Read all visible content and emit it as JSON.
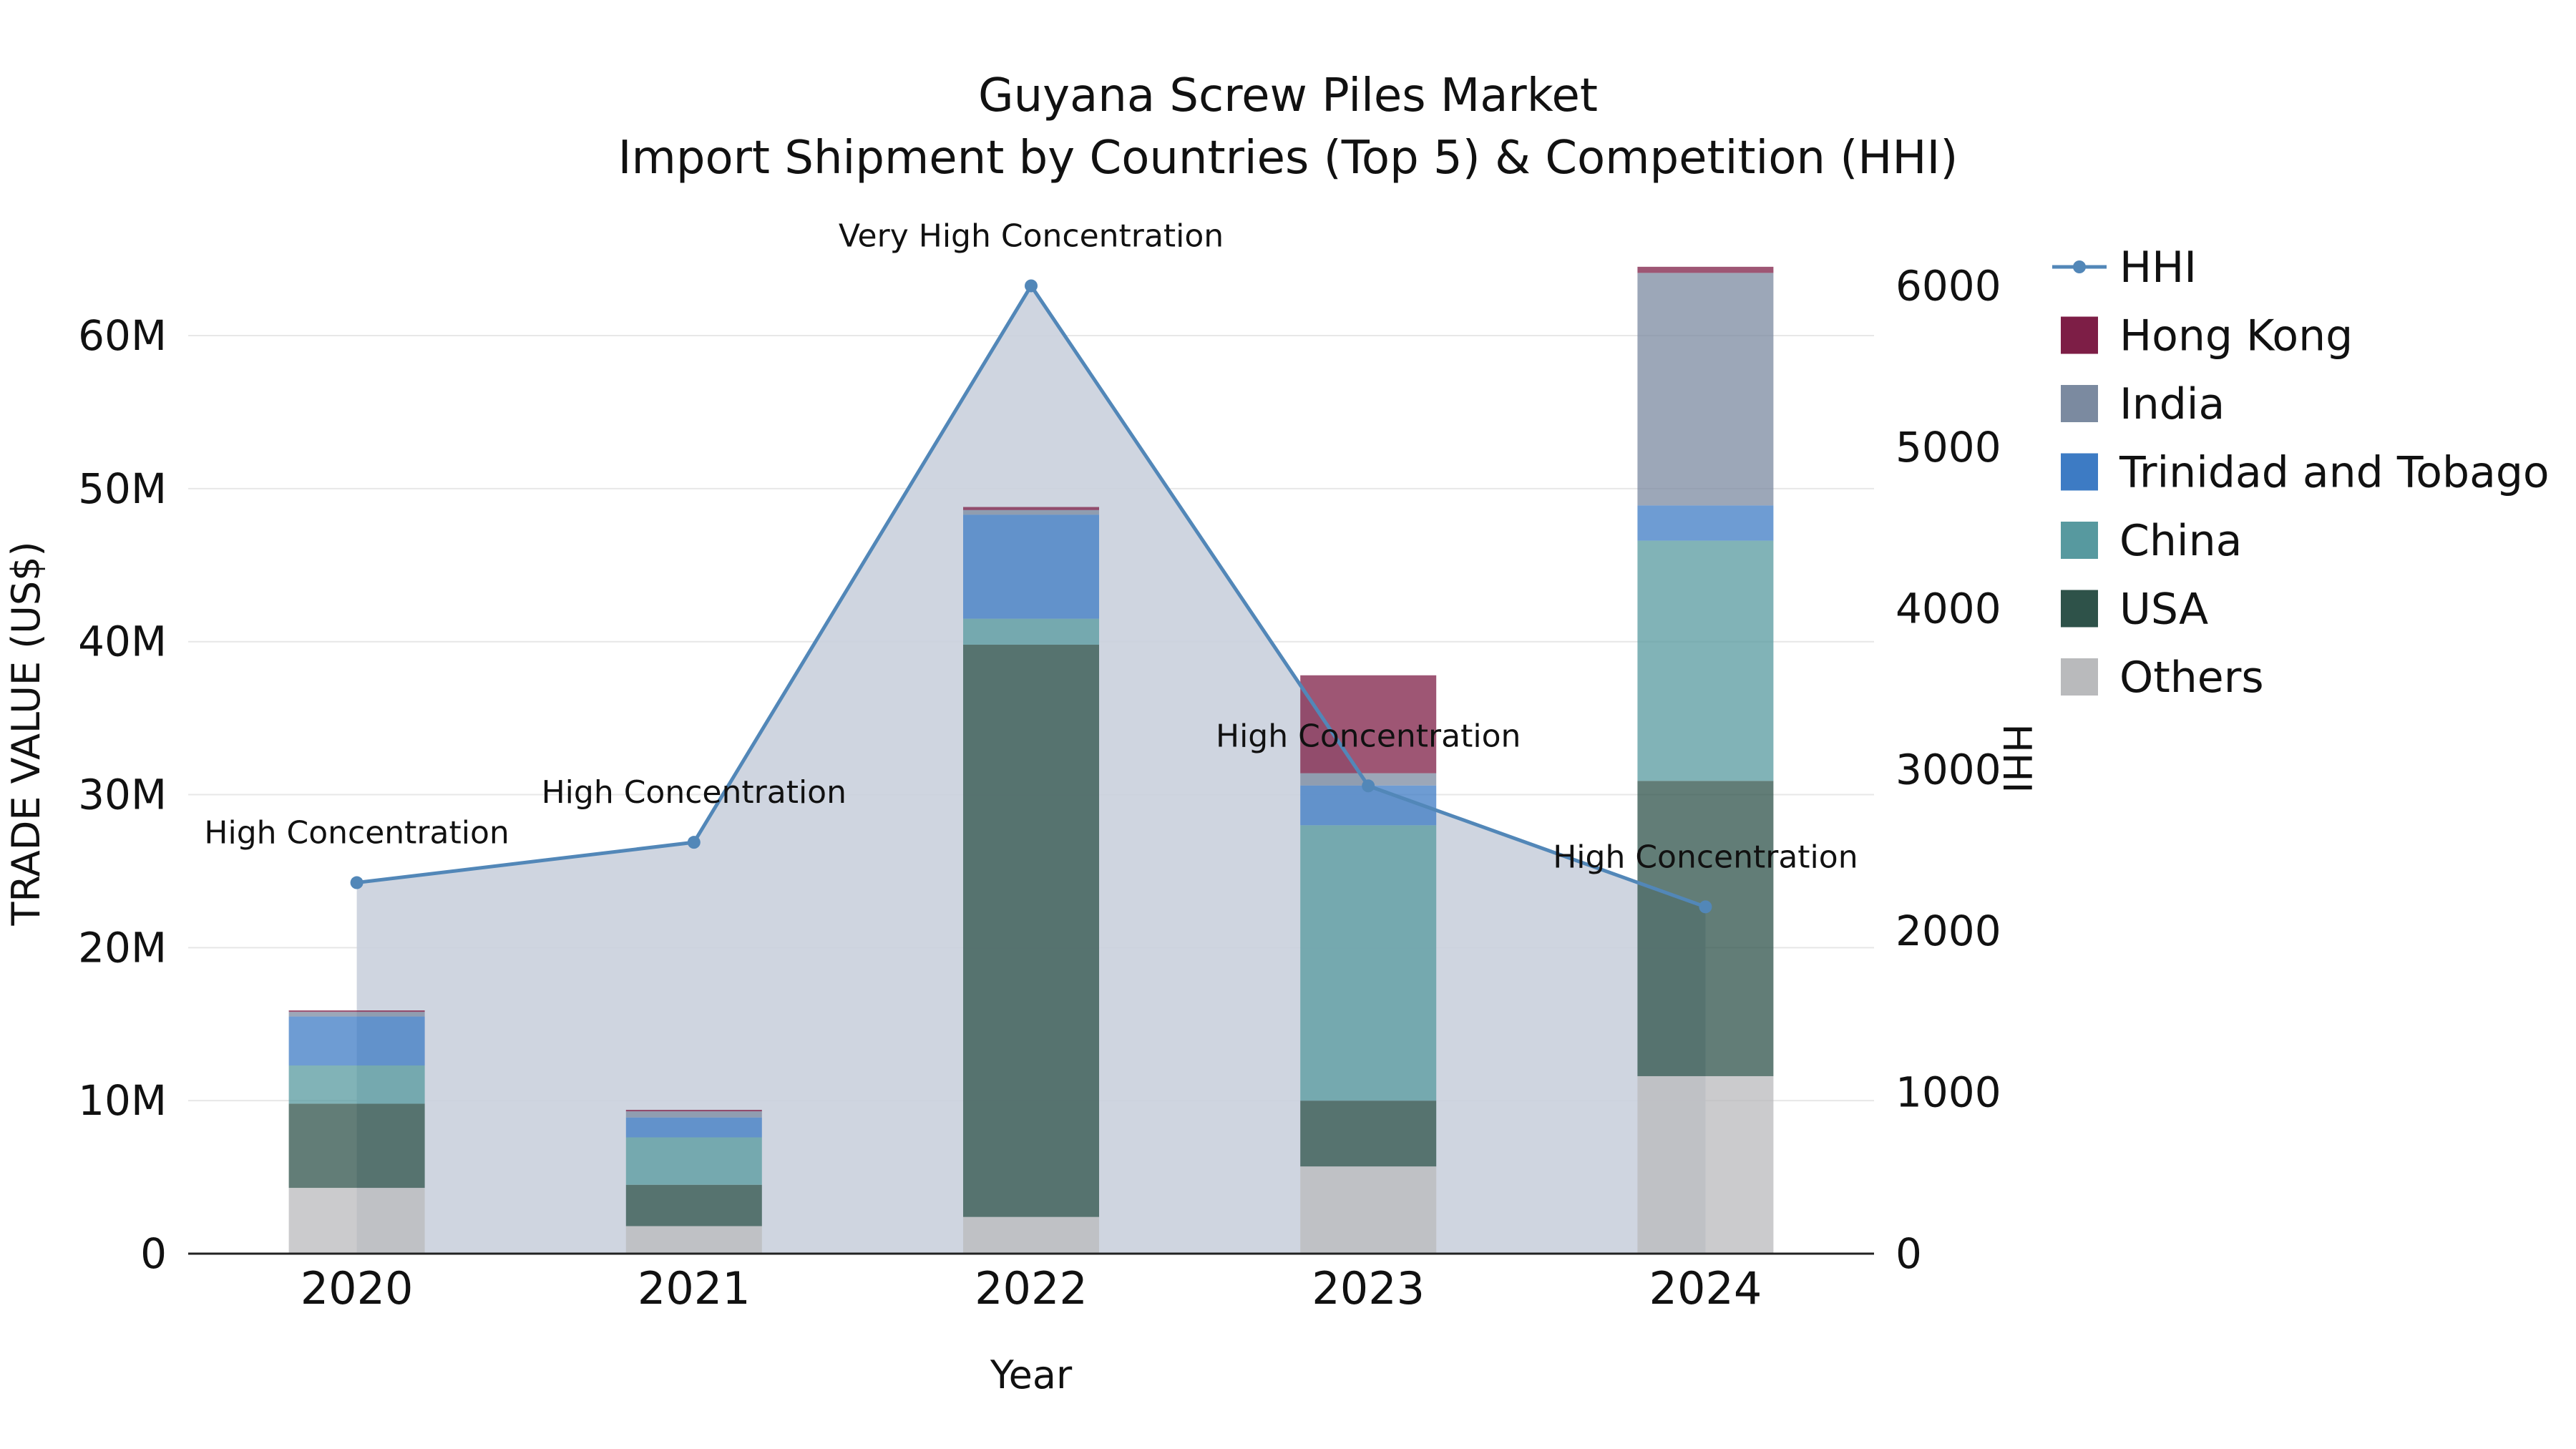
{
  "title_line1": "Guyana Screw Piles Market",
  "title_line2": "Import Shipment by Countries (Top 5) & Competition (HHI)",
  "chart_data": {
    "type": "bar",
    "subtype": "stacked-bar-with-line",
    "x": [
      "2020",
      "2021",
      "2022",
      "2023",
      "2024"
    ],
    "bar_series": [
      {
        "name": "Others",
        "color": "#b9babc",
        "values": [
          4.3,
          1.8,
          2.4,
          5.7,
          11.6
        ]
      },
      {
        "name": "USA",
        "color": "#2e5249",
        "values": [
          5.5,
          2.7,
          37.4,
          4.3,
          19.3
        ]
      },
      {
        "name": "China",
        "color": "#57999f",
        "values": [
          2.5,
          3.1,
          1.7,
          18.0,
          15.7
        ]
      },
      {
        "name": "Trinidad and Tobago",
        "color": "#3d7bc4",
        "values": [
          3.2,
          1.3,
          6.8,
          2.6,
          2.3
        ]
      },
      {
        "name": "India",
        "color": "#7b8aa0",
        "values": [
          0.3,
          0.4,
          0.3,
          0.8,
          15.2
        ]
      },
      {
        "name": "Hong Kong",
        "color": "#7d1e46",
        "values": [
          0.1,
          0.1,
          0.2,
          6.4,
          0.4
        ]
      }
    ],
    "line_series": {
      "name": "HHI",
      "color": "#5287b8",
      "fill_color": "#cbd1dd",
      "values": [
        2300,
        2550,
        6000,
        2900,
        2150
      ]
    },
    "annotations": [
      "High Concentration",
      "High Concentration",
      "Very High Concentration",
      "High Concentration",
      "High Concentration"
    ],
    "left_axis": {
      "label": "TRADE VALUE (US$)",
      "ticks": [
        "0",
        "10M",
        "20M",
        "30M",
        "40M",
        "50M",
        "60M"
      ],
      "tick_values": [
        0,
        10,
        20,
        30,
        40,
        50,
        60
      ],
      "max": 68
    },
    "right_axis": {
      "label": "HHI",
      "ticks": [
        "0",
        "1000",
        "2000",
        "3000",
        "4000",
        "5000",
        "6000"
      ],
      "tick_values": [
        0,
        1000,
        2000,
        3000,
        4000,
        5000,
        6000
      ],
      "max": 6450
    },
    "x_axis": {
      "label": "Year",
      "ticks": [
        "2020",
        "2021",
        "2022",
        "2023",
        "2024"
      ]
    },
    "legend": [
      {
        "label": "HHI",
        "type": "line",
        "color": "#5287b8"
      },
      {
        "label": "Hong Kong",
        "type": "square",
        "color": "#7d1e46"
      },
      {
        "label": "India",
        "type": "square",
        "color": "#7b8aa0"
      },
      {
        "label": "Trinidad and Tobago",
        "type": "square",
        "color": "#3d7bc4"
      },
      {
        "label": "China",
        "type": "square",
        "color": "#57999f"
      },
      {
        "label": "USA",
        "type": "square",
        "color": "#2e5249"
      },
      {
        "label": "Others",
        "type": "square",
        "color": "#b9babc"
      }
    ]
  }
}
